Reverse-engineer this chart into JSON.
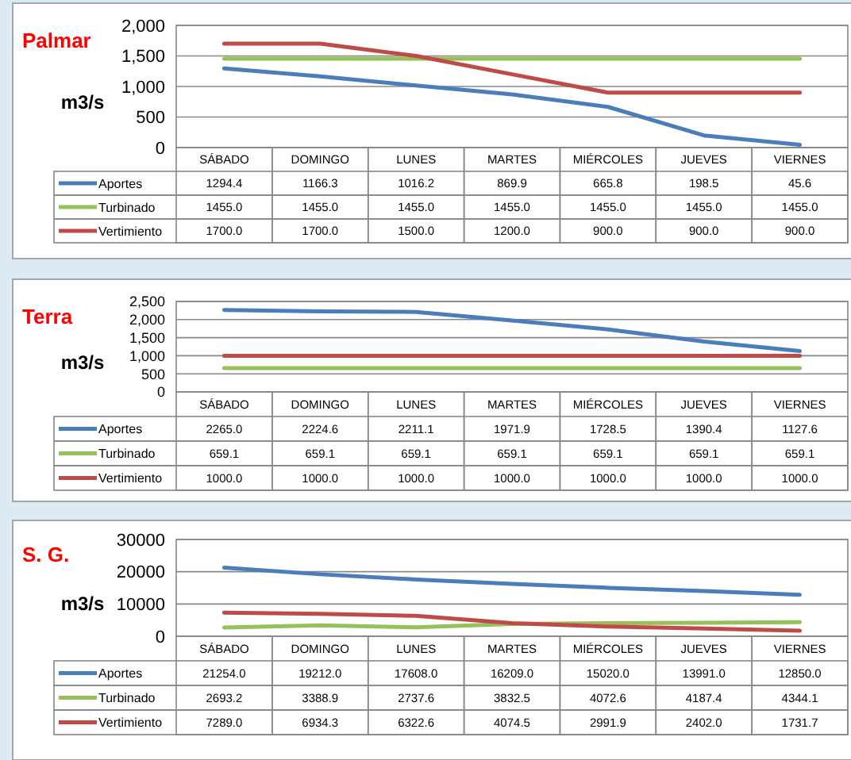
{
  "chart_data": [
    {
      "type": "line",
      "title": "Palmar",
      "ylabel": "m3/s",
      "categories": [
        "SÁBADO",
        "DOMINGO",
        "LUNES",
        "MARTES",
        "MIÉRCOLES",
        "JUEVES",
        "VIERNES"
      ],
      "ylim": [
        0,
        2000
      ],
      "yticks": [
        0,
        500,
        {
          "value": 1000,
          "label": "1,000"
        },
        {
          "value": 1500,
          "label": "1,500"
        },
        {
          "value": 2000,
          "label": "2,000"
        }
      ],
      "grid": "y",
      "legend": "bottom",
      "series": [
        {
          "name": "Aportes",
          "color": "#4a7ebb",
          "values": [
            1294.4,
            1166.3,
            1016.2,
            869.9,
            665.8,
            198.5,
            45.6
          ],
          "value_labels": [
            "1294.4",
            "1166.3",
            "1016.2",
            "869.9",
            "665.8",
            "198.5",
            "45.6"
          ]
        },
        {
          "name": "Turbinado",
          "color": "#98c05a",
          "values": [
            1455.0,
            1455.0,
            1455.0,
            1455.0,
            1455.0,
            1455.0,
            1455.0
          ],
          "value_labels": [
            "1455.0",
            "1455.0",
            "1455.0",
            "1455.0",
            "1455.0",
            "1455.0",
            "1455.0"
          ]
        },
        {
          "name": "Vertimiento",
          "color": "#be4b48",
          "values": [
            1700.0,
            1700.0,
            1500.0,
            1200.0,
            900.0,
            900.0,
            900.0
          ],
          "value_labels": [
            "1700.0",
            "1700.0",
            "1500.0",
            "1200.0",
            "900.0",
            "900.0",
            "900.0"
          ]
        }
      ]
    },
    {
      "type": "line",
      "title": "Terra",
      "ylabel": "m3/s",
      "categories": [
        "SÁBADO",
        "DOMINGO",
        "LUNES",
        "MARTES",
        "MIÉRCOLES",
        "JUEVES",
        "VIERNES"
      ],
      "ylim": [
        0,
        2500
      ],
      "yticks": [
        0,
        500,
        {
          "value": 1000,
          "label": "1,000"
        },
        {
          "value": 1500,
          "label": "1,500"
        },
        {
          "value": 2000,
          "label": "2,000"
        },
        {
          "value": 2500,
          "label": "2,500"
        }
      ],
      "grid": "y",
      "legend": "bottom",
      "series": [
        {
          "name": "Aportes",
          "color": "#4a7ebb",
          "values": [
            2265.0,
            2224.6,
            2211.1,
            1971.9,
            1728.5,
            1390.4,
            1127.6
          ],
          "value_labels": [
            "2265.0",
            "2224.6",
            "2211.1",
            "1971.9",
            "1728.5",
            "1390.4",
            "1127.6"
          ]
        },
        {
          "name": "Turbinado",
          "color": "#98c05a",
          "values": [
            659.1,
            659.1,
            659.1,
            659.1,
            659.1,
            659.1,
            659.1
          ],
          "value_labels": [
            "659.1",
            "659.1",
            "659.1",
            "659.1",
            "659.1",
            "659.1",
            "659.1"
          ]
        },
        {
          "name": "Vertimiento",
          "color": "#be4b48",
          "values": [
            1000.0,
            1000.0,
            1000.0,
            1000.0,
            1000.0,
            1000.0,
            1000.0
          ],
          "value_labels": [
            "1000.0",
            "1000.0",
            "1000.0",
            "1000.0",
            "1000.0",
            "1000.0",
            "1000.0"
          ]
        }
      ]
    },
    {
      "type": "line",
      "title": "S. G.",
      "ylabel": "m3/s",
      "categories": [
        "SÁBADO",
        "DOMINGO",
        "LUNES",
        "MARTES",
        "MIÉRCOLES",
        "JUEVES",
        "VIERNES"
      ],
      "ylim": [
        0,
        30000
      ],
      "yticks": [
        0,
        10000,
        20000,
        30000
      ],
      "grid": "y",
      "legend": "bottom",
      "series": [
        {
          "name": "Aportes",
          "color": "#4a7ebb",
          "values": [
            21254.0,
            19212.0,
            17608.0,
            16209.0,
            15020.0,
            13991.0,
            12850.0
          ],
          "value_labels": [
            "21254.0",
            "19212.0",
            "17608.0",
            "16209.0",
            "15020.0",
            "13991.0",
            "12850.0"
          ]
        },
        {
          "name": "Turbinado",
          "color": "#98c05a",
          "values": [
            2693.2,
            3388.9,
            2737.6,
            3832.5,
            4072.6,
            4187.4,
            4344.1
          ],
          "value_labels": [
            "2693.2",
            "3388.9",
            "2737.6",
            "3832.5",
            "4072.6",
            "4187.4",
            "4344.1"
          ]
        },
        {
          "name": "Vertimiento",
          "color": "#be4b48",
          "values": [
            7289.0,
            6934.3,
            6322.6,
            4074.5,
            2991.9,
            2402.0,
            1731.7
          ],
          "value_labels": [
            "7289.0",
            "6934.3",
            "6322.6",
            "4074.5",
            "2991.9",
            "2402.0",
            "1731.7"
          ]
        }
      ]
    }
  ]
}
